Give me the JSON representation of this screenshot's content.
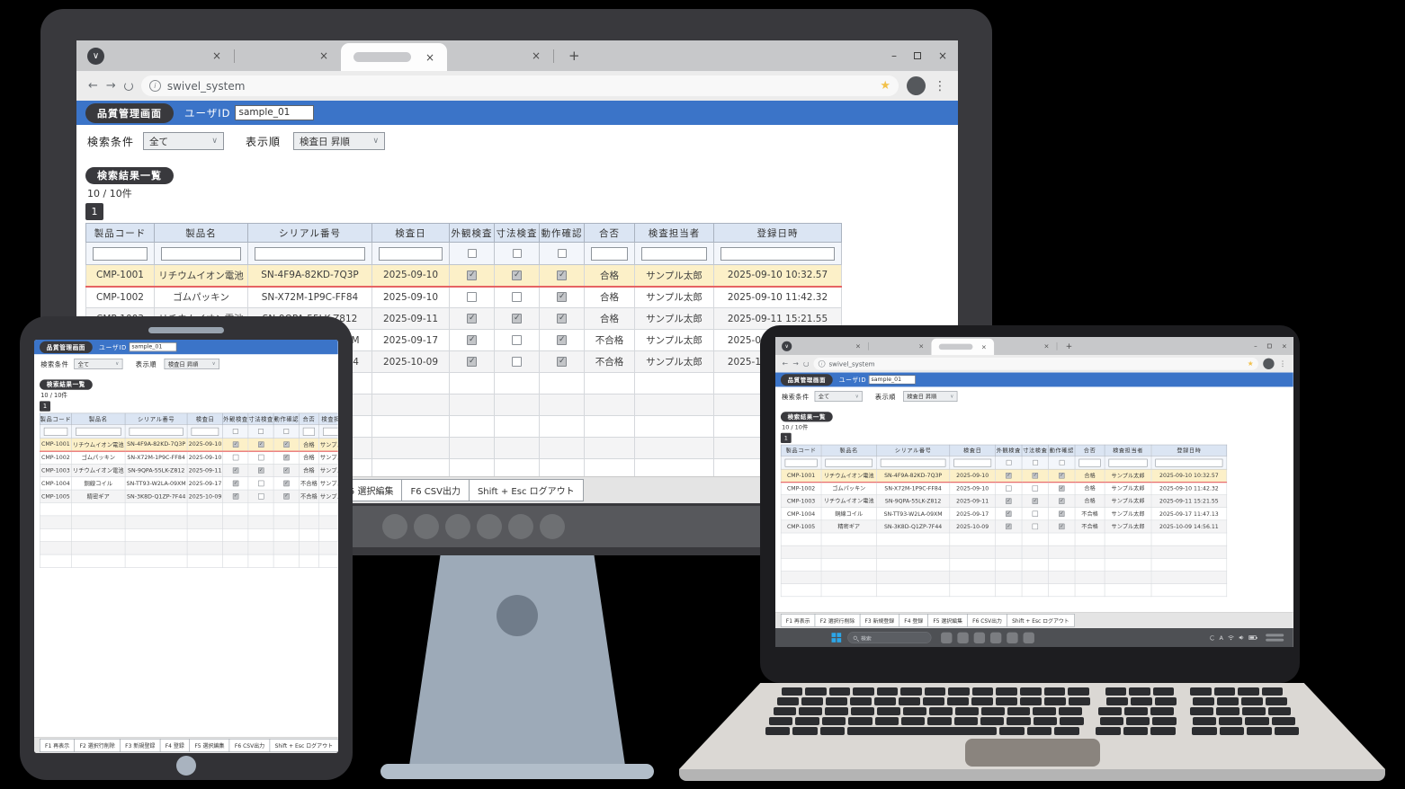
{
  "browser": {
    "url": "swivel_system",
    "icons": {
      "menu_chevron": "∨",
      "close": "×",
      "new_tab": "+",
      "minimize": "–",
      "back": "←",
      "forward": "→",
      "info": "i",
      "star": "★",
      "kebab": "⋮"
    }
  },
  "app": {
    "title_badge": "品質管理画面",
    "user_id_label": "ユーザID",
    "user_id_value": "sample_01",
    "search_condition_label": "検索条件",
    "search_condition_value": "全て",
    "sort_label": "表示順",
    "sort_value": "検査日 昇順",
    "select_chevron": "∨",
    "results_badge": "検索結果一覧",
    "result_count": "10 / 10件",
    "page_number": "1",
    "table": {
      "columns": [
        "製品コード",
        "製品名",
        "シリアル番号",
        "検査日",
        "外観検査",
        "寸法検査",
        "動作確認",
        "合否",
        "検査担当者",
        "登録日時"
      ],
      "rows": [
        {
          "code": "CMP-1001",
          "name": "リチウムイオン電池",
          "serial": "SN-4F9A-82KD-7Q3P",
          "date": "2025-09-10",
          "visual_check": true,
          "dimension_check": true,
          "operation_check": true,
          "result": "合格",
          "inspector": "サンプル太郎",
          "registered": "2025-09-10  10:32.57",
          "highlighted": true
        },
        {
          "code": "CMP-1002",
          "name": "ゴムパッキン",
          "serial": "SN-X72M-1P9C-FF84",
          "date": "2025-09-10",
          "visual_check": false,
          "dimension_check": false,
          "operation_check": true,
          "result": "合格",
          "inspector": "サンプル太郎",
          "registered": "2025-09-10  11:42.32",
          "highlighted": false
        },
        {
          "code": "CMP-1003",
          "name": "リチウムイオン電池",
          "serial": "SN-9QPA-55LK-Z812",
          "date": "2025-09-11",
          "visual_check": true,
          "dimension_check": true,
          "operation_check": true,
          "result": "合格",
          "inspector": "サンプル太郎",
          "registered": "2025-09-11  15:21.55",
          "highlighted": false
        },
        {
          "code": "CMP-1004",
          "name": "銅線コイル",
          "serial": "SN-TT93-W2LA-09XM",
          "date": "2025-09-17",
          "visual_check": true,
          "dimension_check": false,
          "operation_check": true,
          "result": "不合格",
          "inspector": "サンプル太郎",
          "registered": "2025-09-17  11:47.13",
          "highlighted": false
        },
        {
          "code": "CMP-1005",
          "name": "精密ギア",
          "serial": "SN-3K8D-Q1ZP-7F44",
          "date": "2025-10-09",
          "visual_check": true,
          "dimension_check": false,
          "operation_check": true,
          "result": "不合格",
          "inspector": "サンプル太郎",
          "registered": "2025-10-09  14:56.11",
          "highlighted": false
        }
      ]
    },
    "function_keys": [
      "F1 再表示",
      "F2 選択行削除",
      "F3 新規登録",
      "F4 登録",
      "F5 選択編集",
      "F6 CSV出力",
      "Shift + Esc ログアウト"
    ]
  },
  "os_taskbar": {
    "search_label": "検索",
    "ime_indicator": "A"
  }
}
